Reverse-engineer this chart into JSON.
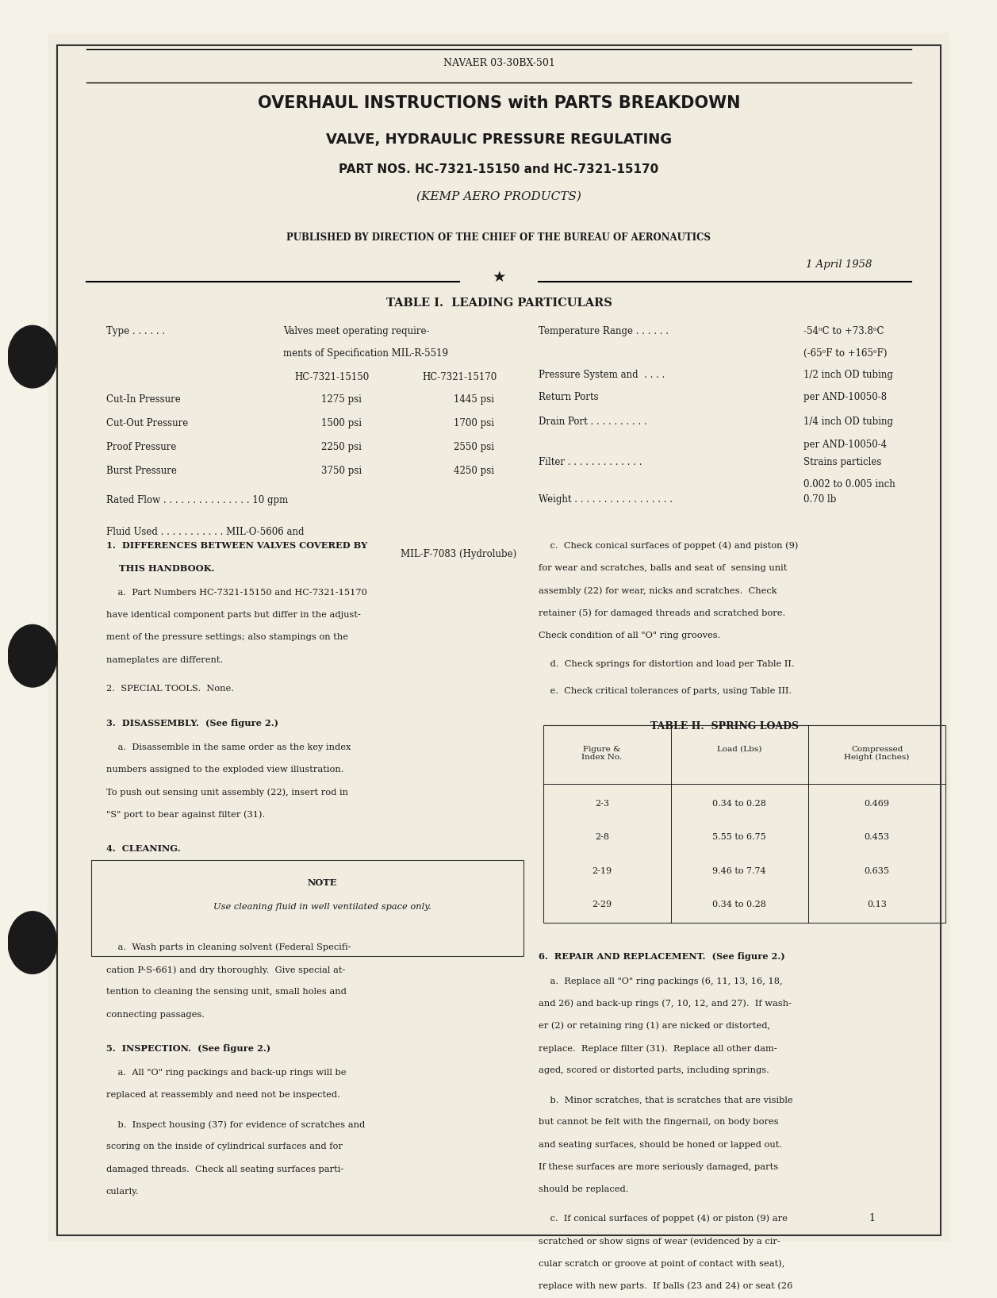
{
  "bg_color": "#f5f2e8",
  "page_color": "#f0ede0",
  "header_text": "NAVAER 03-30BX-501",
  "title_line1": "OVERHAUL INSTRUCTIONS with PARTS BREAKDOWN",
  "title_line2": "VALVE, HYDRAULIC PRESSURE REGULATING",
  "title_line3": "PART NOS. HC-7321-15150 and HC-7321-15170",
  "title_line4": "(KEMP AERO PRODUCTS)",
  "published_text": "PUBLISHED BY DIRECTION OF THE CHIEF OF THE BUREAU OF AERONAUTICS",
  "date_text": "1 April 1958",
  "table1_title": "TABLE I.  LEADING PARTICULARS",
  "type_label": "Type . . . . . .",
  "type_value1": "Valves meet operating require-",
  "type_value2": "ments of Specification MIL-R-5519",
  "col1_header": "HC-7321-15150",
  "col2_header": "HC-7321-15170",
  "pressure_rows": [
    [
      "Cut-In Pressure",
      "1275 psi",
      "1445 psi"
    ],
    [
      "Cut-Out Pressure",
      "1500 psi",
      "1700 psi"
    ],
    [
      "Proof Pressure",
      "2250 psi",
      "2550 psi"
    ],
    [
      "Burst Pressure",
      "3750 psi",
      "4250 psi"
    ]
  ],
  "rated_flow": "Rated Flow . . . . . . . . . . . . . . . 10 gpm",
  "fluid_used1": "Fluid Used . . . . . . . . . . . MIL-O-5606 and",
  "fluid_used2": "MIL-F-7083 (Hydrolube)",
  "temp_range_label": "Temperature Range . . . . . .",
  "temp_range_val1": "-54ᵒC to +73.8ᵒC",
  "temp_range_val2": "(-65ᵒF to +165ᵒF)",
  "pressure_sys_label": "Pressure System and  . . . .",
  "pressure_sys_label2": "Return Ports",
  "pressure_sys_val": "1/2 inch OD tubing",
  "pressure_sys_val2": "per AND-10050-8",
  "drain_port_label": "Drain Port . . . . . . . . . .",
  "drain_port_val": "1/4 inch OD tubing",
  "drain_port_val2": "per AND-10050-4",
  "filter_label": "Filter . . . . . . . . . . . . .",
  "filter_val": "Strains particles",
  "filter_val2": "0.002 to 0.005 inch",
  "weight_label": "Weight . . . . . . . . . . . . . . . . .",
  "weight_val": "0.70 lb",
  "section1_title": "1.  DIFFERENCES BETWEEN VALVES COVERED BY",
  "section1_title2": "    THIS HANDBOOK.",
  "section1a": "    a.  Part Numbers HC-7321-15150 and HC-7321-15170\nhave identical component parts but differ in the adjust-\nment of the pressure settings; also stampings on the\nnameplates are different.",
  "section2": "2.  SPECIAL TOOLS.  None.",
  "section3_title": "3.  DISASSEMBLY.  (See figure 2.)",
  "section3a": "    a.  Disassemble in the same order as the key index\nnumbers assigned to the exploded view illustration.\nTo push out sensing unit assembly (22), insert rod in\n\"S\" port to bear against filter (31).",
  "section4": "4.  CLEANING.",
  "note_title": "NOTE",
  "note_text": "Use cleaning fluid in well ventilated space only.",
  "section4a": "    a.  Wash parts in cleaning solvent (Federal Specifi-\ncation P-S-661) and dry thoroughly.  Give special at-\ntention to cleaning the sensing unit, small holes and\nconnecting passages.",
  "section5_title": "5.  INSPECTION.  (See figure 2.)",
  "section5a": "    a.  All \"O\" ring packings and back-up rings will be\nreplaced at reassembly and need not be inspected.",
  "section5b": "    b.  Inspect housing (37) for evidence of scratches and\nscoring on the inside of cylindrical surfaces and for\ndamaged threads.  Check all seating surfaces parti-\ncularly.",
  "section5c_right": "    c.  Check conical surfaces of poppet (4) and piston (9)\nfor wear and scratches, balls and seat of  sensing unit\nassembly (22) for wear, nicks and scratches.  Check\nretainer (5) for damaged threads and scratched bore.\nCheck condition of all \"O\" ring grooves.",
  "section5d_right": "    d.  Check springs for distortion and load per Table II.",
  "section5e_right": "    e.  Check critical tolerances of parts, using Table III.",
  "table2_title": "TABLE II.  SPRING LOADS",
  "table2_headers": [
    "Figure &\nIndex No.",
    "Load (Lbs)",
    "Compressed\nHeight (Inches)"
  ],
  "table2_rows": [
    [
      "2-3",
      "0.34 to 0.28",
      "0.469"
    ],
    [
      "2-8",
      "5.55 to 6.75",
      "0.453"
    ],
    [
      "2-19",
      "9.46 to 7.74",
      "0.635"
    ],
    [
      "2-29",
      "0.34 to 0.28",
      "0.13"
    ]
  ],
  "section6_title": "6.  REPAIR AND REPLACEMENT.  (See figure 2.)",
  "section6a": "    a.  Replace all \"O\" ring packings (6, 11, 13, 16, 18,\nand 26) and back-up rings (7, 10, 12, and 27).  If wash-\ner (2) or retaining ring (1) are nicked or distorted,\nreplace.  Replace filter (31).  Replace all other dam-\naged, scored or distorted parts, including springs.",
  "section6b": "    b.  Minor scratches, that is scratches that are visible\nbut cannot be felt with the fingernail, on body bores\nand seating surfaces, should be honed or lapped out.\nIf these surfaces are more seriously damaged, parts\nshould be replaced.",
  "section6c": "    c.  If conical surfaces of poppet (4) or piston (9) are\nscratched or show signs of wear (evidenced by a cir-\ncular scratch or groove at point of contact with seat),\nreplace with new parts.  If balls (23 and 24) or seat (26",
  "page_number": "1"
}
